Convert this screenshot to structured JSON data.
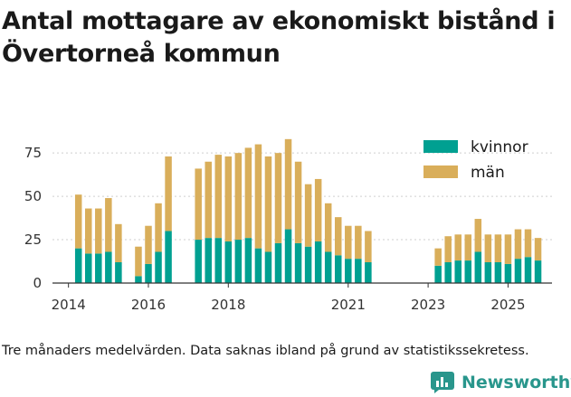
{
  "title": "Antal mottagare av ekonomiskt bistånd i Övertorneå kommun",
  "note": "Tre månaders medelvärden. Data saknas ibland på grund av statistikssekretess.",
  "brand": {
    "name": "Newsworthy",
    "color": "#29968c"
  },
  "chart_data": {
    "type": "bar",
    "stacked": true,
    "title": "Antal mottagare av ekonomiskt bistånd i Övertorneå kommun",
    "xlabel": "",
    "ylabel": "",
    "ylim": [
      0,
      85
    ],
    "xlim": [
      2013.6,
      2026.1
    ],
    "y_ticks": [
      0,
      25,
      50,
      75
    ],
    "x_ticks": [
      2014,
      2016,
      2018,
      2021,
      2023,
      2025
    ],
    "legend_position": "top-right",
    "x": [
      2014.25,
      2014.5,
      2014.75,
      2015.0,
      2015.25,
      2015.75,
      2016.0,
      2016.25,
      2016.5,
      2017.25,
      2017.5,
      2017.75,
      2018.0,
      2018.25,
      2018.5,
      2018.75,
      2019.0,
      2019.25,
      2019.5,
      2019.75,
      2020.0,
      2020.25,
      2020.5,
      2020.75,
      2021.0,
      2021.25,
      2021.5,
      2023.25,
      2023.5,
      2023.75,
      2024.0,
      2024.25,
      2024.5,
      2024.75,
      2025.0,
      2025.25,
      2025.5,
      2025.75
    ],
    "series": [
      {
        "name": "kvinnor",
        "color": "#00a091",
        "values": [
          20,
          17,
          17,
          18,
          12,
          4,
          11,
          18,
          30,
          25,
          26,
          26,
          24,
          25,
          26,
          20,
          18,
          23,
          31,
          23,
          21,
          24,
          18,
          16,
          14,
          14,
          12,
          10,
          12,
          13,
          13,
          18,
          12,
          12,
          11,
          14,
          15,
          13
        ]
      },
      {
        "name": "män",
        "color": "#d9ae5a",
        "values": [
          31,
          26,
          26,
          31,
          22,
          17,
          22,
          28,
          43,
          41,
          44,
          48,
          49,
          50,
          52,
          60,
          55,
          52,
          52,
          47,
          36,
          36,
          28,
          22,
          19,
          19,
          18,
          10,
          15,
          15,
          15,
          19,
          16,
          16,
          17,
          17,
          16,
          13
        ]
      }
    ]
  }
}
